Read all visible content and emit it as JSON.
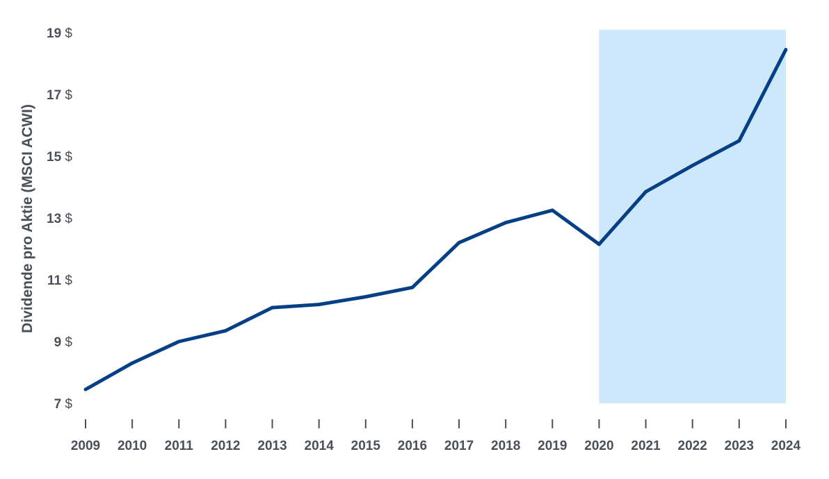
{
  "chart_data": {
    "type": "line",
    "title": "",
    "ylabel": "Dividende pro Aktie (MSCI ACWI)",
    "xlabel": "",
    "x": [
      "2009",
      "2010",
      "2011",
      "2012",
      "2013",
      "2014",
      "2015",
      "2016",
      "2017",
      "2018",
      "2019",
      "2020",
      "2021",
      "2022",
      "2023",
      "2024"
    ],
    "series": [
      {
        "name": "",
        "values": [
          7.45,
          8.3,
          9.0,
          9.35,
          10.1,
          10.2,
          10.45,
          10.75,
          12.2,
          12.85,
          13.25,
          12.15,
          13.85,
          14.7,
          15.5,
          18.45
        ]
      }
    ],
    "ylim": [
      7,
      19
    ],
    "yticks": [
      {
        "value": 7,
        "num": "7",
        "unit": "$"
      },
      {
        "value": 9,
        "num": "9",
        "unit": "$"
      },
      {
        "value": 11,
        "num": "11",
        "unit": "$"
      },
      {
        "value": 13,
        "num": "13",
        "unit": "$"
      },
      {
        "value": 15,
        "num": "15",
        "unit": "$"
      },
      {
        "value": 17,
        "num": "17",
        "unit": "$"
      },
      {
        "value": 19,
        "num": "19",
        "unit": "$"
      }
    ],
    "highlight_range": [
      "2020",
      "2024"
    ],
    "grid": false,
    "legend": "none",
    "colors": {
      "line": "#053f86",
      "highlight": "#cde8fa",
      "text": "#4a4f58",
      "tick": "#4a4f58"
    }
  }
}
